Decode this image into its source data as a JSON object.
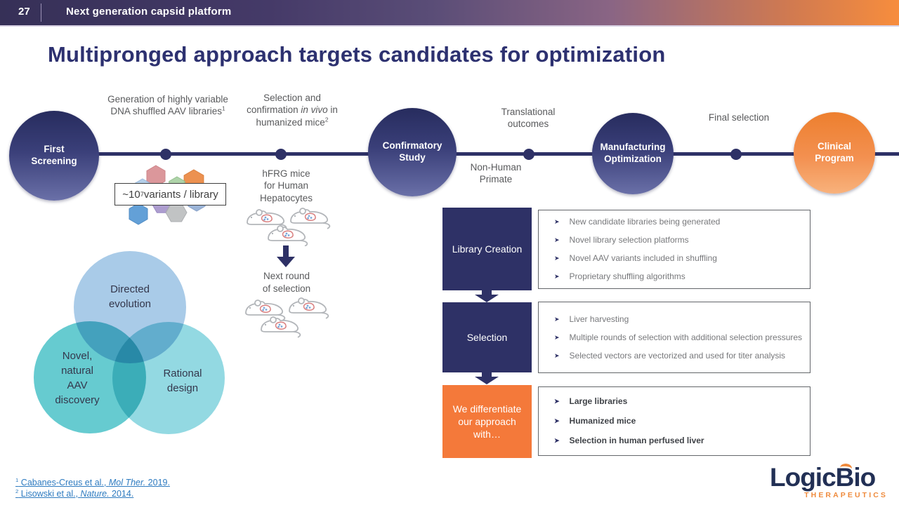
{
  "colors": {
    "navy": "#2e3166",
    "orange": "#f4793a",
    "slide_title_color": "#2d3170",
    "gray_text": "#595a5c",
    "bullet_gray": "#77787b",
    "link_blue": "#2e7bc0",
    "header_gradient_left": "#363057",
    "header_gradient_right": "#f78d3d",
    "venn_top": "#a9cbe8",
    "venn_left": "#66cbd0",
    "venn_right": "#93d9e2"
  },
  "icons": {
    "bullet_arrow": "➤"
  },
  "header": {
    "slide_number": "27",
    "title": "Next generation capsid platform"
  },
  "slide_title": "Multipronged approach targets candidates for optimization",
  "timeline": {
    "stages": [
      {
        "label": "First\nScreening"
      },
      {
        "label": "Confirmatory\nStudy"
      },
      {
        "label": "Manufacturing\nOptimization"
      },
      {
        "label": "Clinical\nProgram"
      }
    ],
    "annotations": {
      "generation": {
        "text": "Generation of highly variable DNA shuffled AAV libraries",
        "sup": "1"
      },
      "selection": {
        "pre": "Selection and confirmation ",
        "italic": "in vivo",
        "post": " in humanized mice",
        "sup": "2"
      },
      "translational": "Translational\noutcomes",
      "final_selection": "Final selection",
      "variants_box": {
        "pre": "~10",
        "sup": "7",
        "post": " variants / library"
      },
      "hfrg": "hFRG mice\nfor Human\nHepatocytes",
      "nhp": "Non-Human\nPrimate"
    }
  },
  "venn": {
    "top": "Directed\nevolution",
    "left": "Novel,\nnatural\nAAV\ndiscovery",
    "right": "Rational\ndesign"
  },
  "next_round": "Next round\nof selection",
  "process": {
    "rows": [
      {
        "label": "Library Creation",
        "bullets": [
          "New candidate libraries being generated",
          "Novel library selection platforms",
          "Novel AAV variants included in shuffling",
          "Proprietary shuffling algorithms"
        ]
      },
      {
        "label": "Selection",
        "bullets": [
          "Liver harvesting",
          "Multiple rounds of selection with additional selection pressures",
          "Selected vectors are vectorized and used for titer analysis"
        ]
      },
      {
        "label": "We differentiate our approach with…",
        "bullets": [
          "Large libraries",
          "Humanized mice",
          "Selection in human perfused liver"
        ]
      }
    ]
  },
  "footnotes": [
    {
      "sup": "1",
      "pre": " Cabanes-Creus et al., ",
      "italic": "Mol Ther.",
      "post": " 2019."
    },
    {
      "sup": "2",
      "pre": " Lisowski et al., ",
      "italic": "Nature.",
      "post": " 2014."
    }
  ],
  "logo": {
    "name": "LogicBio",
    "tagline": "THERAPEUTICS"
  }
}
